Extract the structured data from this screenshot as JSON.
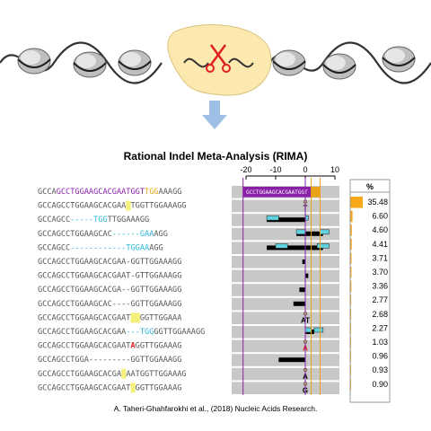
{
  "title": "Rational Indel Meta-Analysis (RIMA)",
  "citation": "A. Taheri-Ghahfarokhi et al., (2018) Nucleic Acids Research.",
  "axis": {
    "ticks": [
      "-20",
      "-10",
      "0",
      "10"
    ],
    "values": [
      -20,
      -10,
      0,
      10
    ]
  },
  "pct_header": "%",
  "reference": {
    "seq": "GCCAGCCTGGAAGCACGAATGGTTGGAAAGG",
    "segments": [
      {
        "text": "GCCA",
        "color": "#555555"
      },
      {
        "text": "GCCTGGAAGCACGAATGGT",
        "color": "#8a1fa8"
      },
      {
        "text": "TGG",
        "color": "#e8a317"
      },
      {
        "text": "AAAGG",
        "color": "#555555"
      }
    ],
    "inner_label": "GCCTGGAAGCACGAATGGT",
    "percent": "35.48",
    "fraction": 1.0
  },
  "rows": [
    {
      "segments": [
        {
          "t": "GCCAGCCTGGAAGCACGAA",
          "c": "#555555"
        },
        {
          "t": "T",
          "c": "#000000",
          "hl": "#f5f07a"
        },
        {
          "t": "TGGTTGGAAAGG",
          "c": "#555555"
        }
      ],
      "percent": "6.60",
      "fraction": 0.186,
      "marker": "T",
      "events": [
        {
          "type": "ins",
          "x1": 0,
          "x2": 0
        }
      ]
    },
    {
      "segments": [
        {
          "t": "GCCAGCC",
          "c": "#555555"
        },
        {
          "t": "-----",
          "c": "#2ab6d9"
        },
        {
          "t": "TGG",
          "c": "#2ab6d9"
        },
        {
          "t": "TTGGAAAGG",
          "c": "#555555"
        }
      ],
      "percent": "4.60",
      "fraction": 0.13,
      "events": [
        {
          "type": "del",
          "x1": -13,
          "x2": 0
        },
        {
          "type": "mis",
          "x1": -13,
          "x2": -10
        },
        {
          "type": "mis",
          "x1": 0,
          "x2": 0
        }
      ]
    },
    {
      "segments": [
        {
          "t": "GCCAGCCTGGAAGCAC",
          "c": "#555555"
        },
        {
          "t": "------",
          "c": "#2ab6d9"
        },
        {
          "t": "GAA",
          "c": "#2ab6d9"
        },
        {
          "t": "AGG",
          "c": "#555555"
        }
      ],
      "percent": "4.41",
      "fraction": 0.124,
      "events": [
        {
          "type": "del",
          "x1": -3,
          "x2": 6
        },
        {
          "type": "mis",
          "x1": -3,
          "x2": -1
        },
        {
          "type": "mis",
          "x1": 5,
          "x2": 7
        }
      ]
    },
    {
      "segments": [
        {
          "t": "GCCAGCC",
          "c": "#555555"
        },
        {
          "t": "------------",
          "c": "#2ab6d9"
        },
        {
          "t": "TGGAA",
          "c": "#2ab6d9"
        },
        {
          "t": "AGG",
          "c": "#555555"
        }
      ],
      "percent": "3.71",
      "fraction": 0.105,
      "events": [
        {
          "type": "del",
          "x1": -13,
          "x2": 6
        },
        {
          "type": "mis",
          "x1": -10,
          "x2": -7
        },
        {
          "type": "mis",
          "x1": 4,
          "x2": 7
        }
      ]
    },
    {
      "segments": [
        {
          "t": "GCCAGCCTGGAAGCACGAA-GGTTGGAAAGG",
          "c": "#555555"
        }
      ],
      "percent": "3.70",
      "fraction": 0.104,
      "events": [
        {
          "type": "del",
          "x1": -1,
          "x2": 0
        }
      ]
    },
    {
      "segments": [
        {
          "t": "GCCAGCCTGGAAGCACGAAT-GTTGGAAAGG",
          "c": "#555555"
        }
      ],
      "percent": "3.36",
      "fraction": 0.095,
      "events": [
        {
          "type": "del",
          "x1": 0,
          "x2": 1
        }
      ]
    },
    {
      "segments": [
        {
          "t": "GCCAGCCTGGAAGCACGA--GGTTGGAAAGG",
          "c": "#555555"
        }
      ],
      "percent": "2.77",
      "fraction": 0.078,
      "events": [
        {
          "type": "del",
          "x1": -2,
          "x2": 0
        }
      ]
    },
    {
      "segments": [
        {
          "t": "GCCAGCCTGGAAGCAC----GGTTGGAAAGG",
          "c": "#555555"
        }
      ],
      "percent": "2.68",
      "fraction": 0.076,
      "events": [
        {
          "type": "del",
          "x1": -4,
          "x2": 0
        }
      ]
    },
    {
      "segments": [
        {
          "t": "GCCAGCCTGGAAGCACGAAT",
          "c": "#555555"
        },
        {
          "t": "AT",
          "c": "#000000",
          "hl": "#f5f07a"
        },
        {
          "t": "GGTTGGAAA",
          "c": "#555555"
        }
      ],
      "percent": "2.27",
      "fraction": 0.064,
      "marker": "AT",
      "events": [
        {
          "type": "ins",
          "x1": 0,
          "x2": 0
        }
      ]
    },
    {
      "segments": [
        {
          "t": "GCCAGCCTGGAAGCACGAA",
          "c": "#555555"
        },
        {
          "t": "---",
          "c": "#2ab6d9"
        },
        {
          "t": "TGG",
          "c": "#2ab6d9"
        },
        {
          "t": "GGTTGGAAAGG",
          "c": "#555555"
        }
      ],
      "percent": "1.03",
      "fraction": 0.029,
      "events": [
        {
          "type": "del",
          "x1": 0,
          "x2": 3
        },
        {
          "type": "mis",
          "x1": 0,
          "x2": 1
        },
        {
          "type": "mis",
          "x1": 3,
          "x2": 5
        }
      ]
    },
    {
      "segments": [
        {
          "t": "GCCAGCCTGGAAGCACGAAT",
          "c": "#555555"
        },
        {
          "t": "A",
          "c": "#e02020"
        },
        {
          "t": "GGTTGGAAAG",
          "c": "#555555"
        }
      ],
      "percent": "0.96",
      "fraction": 0.027,
      "marker": "A",
      "marker_color": "#e02020",
      "events": [
        {
          "type": "ins",
          "x1": 0,
          "x2": 0
        }
      ]
    },
    {
      "segments": [
        {
          "t": "GCCAGCCTGGA---------GGTTGGAAAGG",
          "c": "#555555"
        }
      ],
      "percent": "0.93",
      "fraction": 0.026,
      "events": [
        {
          "type": "del",
          "x1": -9,
          "x2": 0
        }
      ]
    },
    {
      "segments": [
        {
          "t": "GCCAGCCTGGAAGCACGA",
          "c": "#555555"
        },
        {
          "t": "A",
          "c": "#000000",
          "hl": "#f5f07a"
        },
        {
          "t": "AATGGTTGGAAAG",
          "c": "#555555"
        }
      ],
      "percent": "0.90",
      "fraction": 0.025,
      "marker": "A",
      "events": [
        {
          "type": "ins",
          "x1": 0,
          "x2": 0
        }
      ]
    },
    {
      "segments": [
        {
          "t": "GCCAGCCTGGAAGCACGAAT",
          "c": "#555555"
        },
        {
          "t": "G",
          "c": "#000000",
          "hl": "#f5f07a"
        },
        {
          "t": "GGTTGGAAAG",
          "c": "#555555"
        }
      ],
      "percent": "",
      "fraction": 0.02,
      "marker": "G",
      "events": [
        {
          "type": "ins",
          "x1": 0,
          "x2": 0
        }
      ]
    }
  ],
  "colors": {
    "nucleus_fill": "#fbe9b0",
    "scissors": "#e02020",
    "arrow": "#9fc0e6",
    "bar": "#f6a81a",
    "row_bg": "#c8c8c8",
    "deletion": "#000000",
    "mismatch": "#5fd4e0",
    "purple_line": "#8a1fa8",
    "gold_line": "#e8a317"
  },
  "icons": [
    "nucleosome-icon",
    "scissors-icon",
    "down-arrow-icon"
  ]
}
